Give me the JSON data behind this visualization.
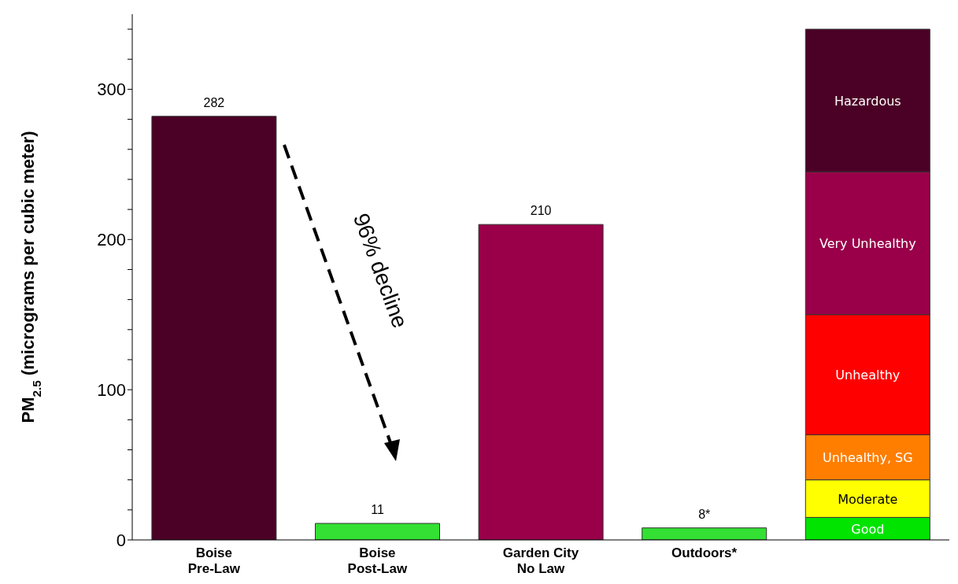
{
  "chart_data": {
    "type": "bar",
    "stacked": true,
    "ylabel": "PM$_{2.5}$ (micrograms per cubic meter)",
    "categories": [
      "Boise\nPre-Law",
      "Boise\nPost-Law",
      "Garden City\nNo Law",
      "Outdoors*",
      null
    ],
    "series": [
      {
        "colors": [
          "#4b0026",
          "#33e033",
          "#990049",
          "#33e033",
          "#33e033"
        ],
        "values": [
          282,
          11,
          210,
          8,
          null
        ],
        "value_labels": [
          "282",
          "11",
          "210",
          "8*",
          null
        ]
      },
      {
        "name": "Good",
        "color": "#00e400",
        "values": [
          null,
          null,
          null,
          null,
          15
        ]
      },
      {
        "name": "Moderate",
        "color": "#ffff00",
        "values": [
          null,
          null,
          null,
          null,
          25
        ]
      },
      {
        "name": "Unhealthy, SG",
        "color": "#ff7e00",
        "values": [
          null,
          null,
          null,
          null,
          30
        ]
      },
      {
        "name": "Unhealthy",
        "color": "#ff0000",
        "values": [
          null,
          null,
          null,
          null,
          80
        ]
      },
      {
        "name": "Very Unhealthy",
        "color": "#990049",
        "values": [
          null,
          null,
          null,
          null,
          95
        ]
      },
      {
        "name": "Hazardous",
        "color": "#4b0026",
        "values": [
          null,
          null,
          null,
          null,
          95
        ]
      }
    ],
    "ylim": [
      0,
      350
    ],
    "yticks": [
      0,
      {
        "value": 20,
        "label": null
      },
      {
        "value": 40,
        "label": null
      },
      {
        "value": 60,
        "label": null
      },
      {
        "value": 80,
        "label": null
      },
      100,
      {
        "value": 120,
        "label": null
      },
      {
        "value": 140,
        "label": null
      },
      {
        "value": 160,
        "label": null
      },
      {
        "value": 180,
        "label": null
      },
      200,
      {
        "value": 220,
        "label": null
      },
      {
        "value": 240,
        "label": null
      },
      {
        "value": 260,
        "label": null
      },
      {
        "value": 280,
        "label": null
      },
      300,
      {
        "value": 320,
        "label": null
      },
      {
        "value": 340,
        "label": null
      }
    ],
    "grid": false,
    "legend": false,
    "annotations": [
      "96% decline"
    ]
  }
}
